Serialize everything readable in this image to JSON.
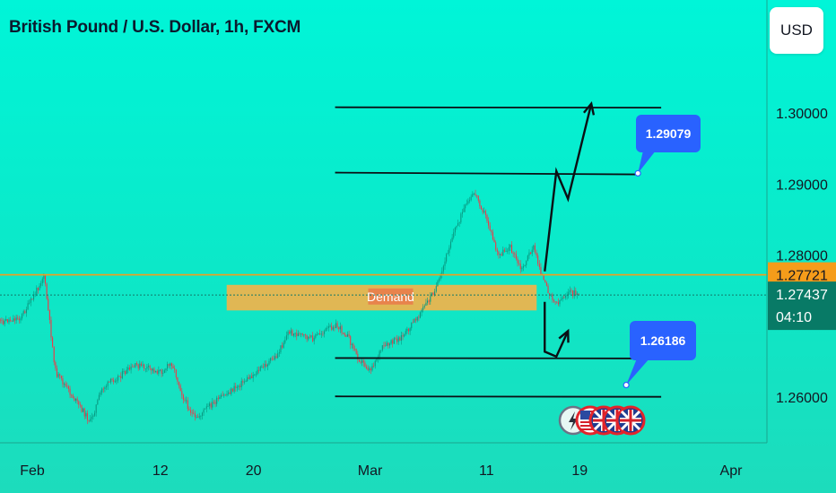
{
  "header": {
    "title": "British Pound / U.S. Dollar, 1h, FXCM",
    "currency": "USD"
  },
  "colors": {
    "background_top": "#00f5d8",
    "candle_up": "#089981",
    "candle_down": "#f23645",
    "current_price": "#f59c1a",
    "demand_zone": "#f2b34a",
    "callout": "#2962ff",
    "price_label_bg": "#087a66"
  },
  "chart_data": {
    "type": "candlestick",
    "x_axis": {
      "start": "2024-02-01",
      "end": "2024-04-01",
      "tick_labels": [
        {
          "label": "Feb",
          "date": "2024-02-01"
        },
        {
          "label": "12",
          "date": "2024-02-12"
        },
        {
          "label": "20",
          "date": "2024-02-20"
        },
        {
          "label": "Mar",
          "date": "2024-03-01"
        },
        {
          "label": "11",
          "date": "2024-03-11"
        },
        {
          "label": "19",
          "date": "2024-03-19"
        },
        {
          "label": "Apr",
          "date": "2024-04-01"
        }
      ]
    },
    "y_axis": {
      "range": [
        1.2555,
        1.3055
      ],
      "tick_labels": [
        "1.30000",
        "1.29000",
        "1.28000",
        "1.26000"
      ]
    },
    "price_path": [
      {
        "date": "2024-01-29",
        "price": 1.2705
      },
      {
        "date": "2024-01-31",
        "price": 1.2712
      },
      {
        "date": "2024-02-01",
        "price": 1.2738
      },
      {
        "date": "2024-02-02",
        "price": 1.2772
      },
      {
        "date": "2024-02-03",
        "price": 1.2635
      },
      {
        "date": "2024-02-06",
        "price": 1.2565
      },
      {
        "date": "2024-02-07",
        "price": 1.2612
      },
      {
        "date": "2024-02-08",
        "price": 1.2625
      },
      {
        "date": "2024-02-10",
        "price": 1.2645
      },
      {
        "date": "2024-02-12",
        "price": 1.2635
      },
      {
        "date": "2024-02-13",
        "price": 1.2648
      },
      {
        "date": "2024-02-14",
        "price": 1.2598
      },
      {
        "date": "2024-02-15",
        "price": 1.2568
      },
      {
        "date": "2024-02-16",
        "price": 1.2585
      },
      {
        "date": "2024-02-18",
        "price": 1.2608
      },
      {
        "date": "2024-02-20",
        "price": 1.2632
      },
      {
        "date": "2024-02-22",
        "price": 1.2658
      },
      {
        "date": "2024-02-23",
        "price": 1.2692
      },
      {
        "date": "2024-02-25",
        "price": 1.2682
      },
      {
        "date": "2024-02-27",
        "price": 1.2702
      },
      {
        "date": "2024-02-28",
        "price": 1.2688
      },
      {
        "date": "2024-02-29",
        "price": 1.2655
      },
      {
        "date": "2024-03-01",
        "price": 1.2638
      },
      {
        "date": "2024-03-02",
        "price": 1.2668
      },
      {
        "date": "2024-03-04",
        "price": 1.2688
      },
      {
        "date": "2024-03-05",
        "price": 1.2712
      },
      {
        "date": "2024-03-06",
        "price": 1.2735
      },
      {
        "date": "2024-03-07",
        "price": 1.2765
      },
      {
        "date": "2024-03-08",
        "price": 1.2825
      },
      {
        "date": "2024-03-09",
        "price": 1.2862
      },
      {
        "date": "2024-03-10",
        "price": 1.2888
      },
      {
        "date": "2024-03-11",
        "price": 1.2852
      },
      {
        "date": "2024-03-12",
        "price": 1.2798
      },
      {
        "date": "2024-03-13",
        "price": 1.2812
      },
      {
        "date": "2024-03-14",
        "price": 1.2778
      },
      {
        "date": "2024-03-15",
        "price": 1.2812
      },
      {
        "date": "2024-03-16",
        "price": 1.2758
      },
      {
        "date": "2024-03-17",
        "price": 1.2732
      },
      {
        "date": "2024-03-18",
        "price": 1.2748
      },
      {
        "date": "2024-03-19",
        "price": 1.2744
      }
    ],
    "current_price": {
      "value": "1.27437",
      "price": 1.27437,
      "countdown": "04:10"
    },
    "reference_price": {
      "value": "1.27721",
      "price": 1.27721
    },
    "demand_zone": {
      "label": "Demand",
      "from": "2024-02-18",
      "to": "2024-03-15",
      "high": 1.2758,
      "low": 1.2722
    },
    "levels": [
      {
        "price": 1.3008,
        "from": "2024-02-27",
        "to": "2024-03-26"
      },
      {
        "price": 1.2916,
        "from": "2024-02-27",
        "to": "2024-03-24"
      },
      {
        "price": 1.2655,
        "from": "2024-02-27",
        "to": "2024-03-26"
      },
      {
        "price": 1.2601,
        "from": "2024-02-27",
        "to": "2024-03-26"
      }
    ],
    "callouts": [
      {
        "label": "1.29079",
        "anchor_date": "2024-03-24",
        "anchor_price": 1.2915
      },
      {
        "label": "1.26186",
        "anchor_date": "2024-03-23",
        "anchor_price": 1.2617
      }
    ],
    "projection_up": [
      {
        "date": "2024-03-16",
        "price": 1.2777
      },
      {
        "date": "2024-03-17",
        "price": 1.2918
      },
      {
        "date": "2024-03-18",
        "price": 1.2879
      },
      {
        "date": "2024-03-20",
        "price": 1.3013
      }
    ],
    "projection_down": [
      {
        "date": "2024-03-16",
        "price": 1.2734
      },
      {
        "date": "2024-03-16",
        "price": 1.2664
      },
      {
        "date": "2024-03-17",
        "price": 1.2657
      },
      {
        "date": "2024-03-18",
        "price": 1.2693
      }
    ],
    "event_icons": [
      "lightning-icon",
      "us-flag-icon",
      "uk-flag-icon",
      "uk-flag-icon",
      "uk-flag-icon"
    ],
    "grid": false,
    "legend": "none"
  }
}
